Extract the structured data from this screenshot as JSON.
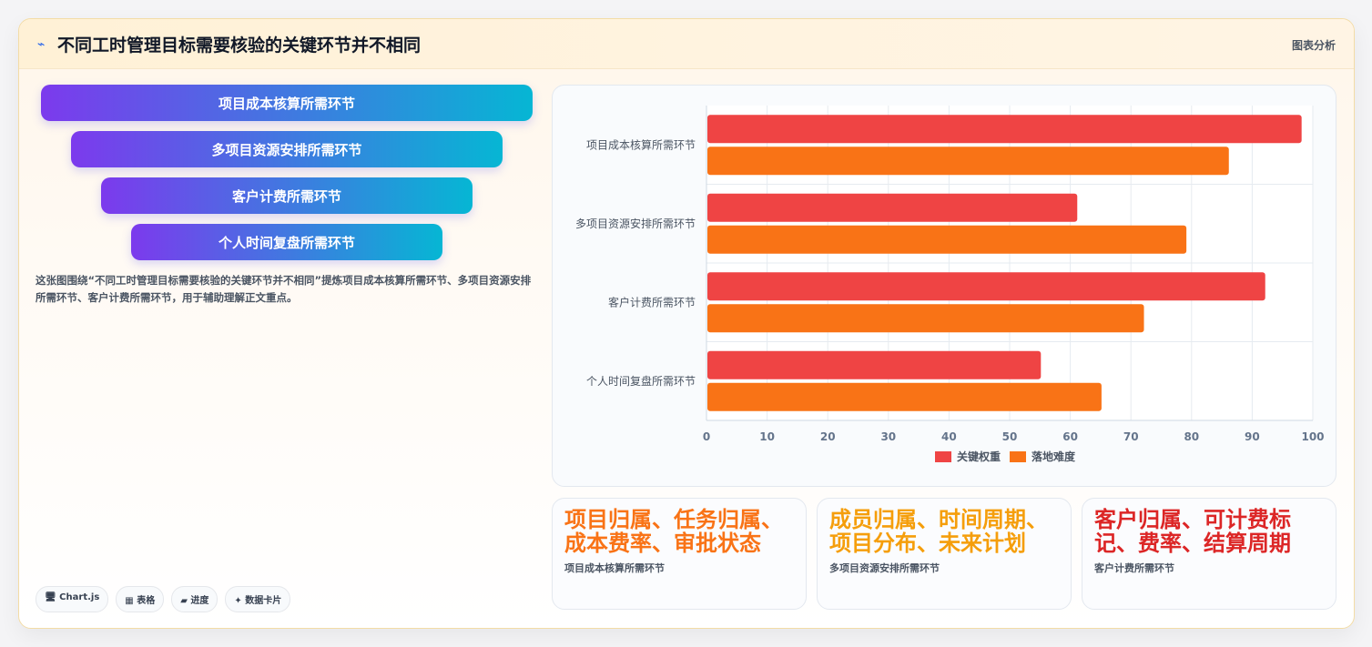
{
  "header": {
    "icon": "chart-trend-icon",
    "title": "不同工时管理目标需要核验的关键环节并不相同",
    "tag": "图表分析"
  },
  "funnel": [
    "项目成本核算所需环节",
    "多项目资源安排所需环节",
    "客户计费所需环节",
    "个人时间复盘所需环节"
  ],
  "description": "这张图围绕“不同工时管理目标需要核验的关键环节并不相同”提炼项目成本核算所需环节、多项目资源安排所需环节、客户计费所需环节，用于辅助理解正文重点。",
  "tags": [
    "🖥 Chart.js",
    "▦ 表格",
    "▰ 进度",
    "✦ 数据卡片"
  ],
  "chart_data": {
    "type": "bar",
    "orientation": "horizontal",
    "categories": [
      "项目成本核算所需环节",
      "多项目资源安排所需环节",
      "客户计费所需环节",
      "个人时间复盘所需环节"
    ],
    "series": [
      {
        "name": "关键权重",
        "values": [
          98,
          61,
          92,
          55
        ],
        "color": "#ef4444"
      },
      {
        "name": "落地难度",
        "values": [
          86,
          79,
          72,
          65
        ],
        "color": "#f97316"
      }
    ],
    "xlim": [
      0,
      100
    ],
    "xticks": [
      0,
      10,
      20,
      30,
      40,
      50,
      60,
      70,
      80,
      90,
      100
    ],
    "grid": true,
    "legend": "bottom"
  },
  "kpis": [
    {
      "value": "项目归属、任务归属、成本费率、审批状态",
      "label": "项目成本核算所需环节",
      "color": "#f97316"
    },
    {
      "value": "成员归属、时间周期、项目分布、未来计划",
      "label": "多项目资源安排所需环节",
      "color": "#f59e0b"
    },
    {
      "value": "客户归属、可计费标记、费率、结算周期",
      "label": "客户计费所需环节",
      "color": "#dc2626"
    }
  ]
}
